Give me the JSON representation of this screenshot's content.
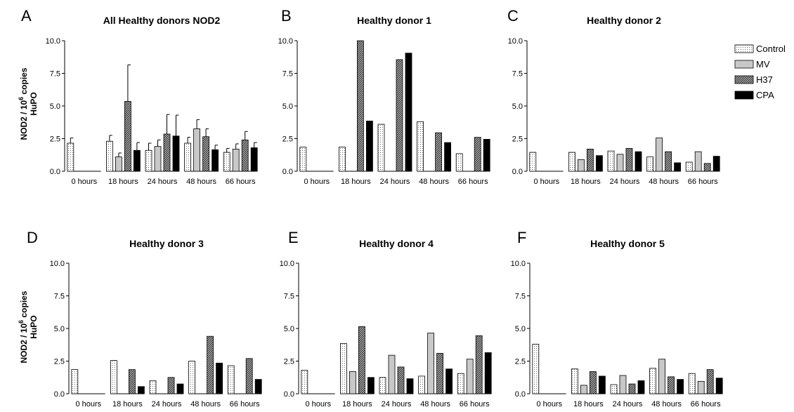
{
  "figure": {
    "ylabel_main": "NOD2 / 10",
    "ylabel_sup": "6",
    "ylabel_tail": " copies",
    "ylabel_line2": "HuPO"
  },
  "legend": {
    "items": [
      {
        "label": "Control",
        "pattern": "dots"
      },
      {
        "label": "MV",
        "pattern": "gray"
      },
      {
        "label": "H37",
        "pattern": "hatch"
      },
      {
        "label": "CPA",
        "pattern": "black"
      }
    ]
  },
  "chart_data": [
    {
      "type": "bar",
      "letter": "A",
      "title": "All Healthy donors NOD2",
      "categories": [
        "0 hours",
        "18 hours",
        "24 hours",
        "48 hours",
        "66 hours"
      ],
      "ylim": [
        0,
        10
      ],
      "yticks": [
        "0.0",
        "2.5",
        "5.0",
        "7.5",
        "10.0"
      ],
      "error_bars": true,
      "series": [
        {
          "name": "Control",
          "values": [
            2.15,
            2.3,
            1.6,
            2.15,
            1.45
          ],
          "errors": [
            0.4,
            0.45,
            0.55,
            0.45,
            0.3
          ]
        },
        {
          "name": "MV",
          "values": [
            0,
            1.1,
            1.9,
            3.25,
            1.7
          ],
          "errors": [
            0,
            0.3,
            0.5,
            0.7,
            0.4
          ]
        },
        {
          "name": "H37",
          "values": [
            0,
            5.35,
            2.85,
            2.65,
            2.4
          ],
          "errors": [
            0,
            2.8,
            1.5,
            0.6,
            0.65
          ]
        },
        {
          "name": "CPA",
          "values": [
            0,
            1.6,
            2.7,
            1.65,
            1.8
          ],
          "errors": [
            0,
            0.6,
            1.6,
            0.35,
            0.4
          ]
        }
      ]
    },
    {
      "type": "bar",
      "letter": "B",
      "title": "Healthy donor 1",
      "categories": [
        "0 hours",
        "18 hours",
        "24 hours",
        "48 hours",
        "66 hours"
      ],
      "ylim": [
        0,
        10
      ],
      "yticks": [
        "0.0",
        "2.5",
        "5.0",
        "7.5",
        "10.0"
      ],
      "series": [
        {
          "name": "Control",
          "values": [
            1.85,
            1.85,
            3.6,
            3.8,
            1.35
          ]
        },
        {
          "name": "MV",
          "values": [
            0,
            0,
            0,
            0,
            0
          ]
        },
        {
          "name": "H37",
          "values": [
            0,
            10.0,
            8.55,
            2.95,
            2.6
          ]
        },
        {
          "name": "CPA",
          "values": [
            0,
            3.85,
            9.05,
            2.2,
            2.45
          ]
        }
      ]
    },
    {
      "type": "bar",
      "letter": "C",
      "title": "Healthy donor 2",
      "categories": [
        "0 hours",
        "18 hours",
        "24 hours",
        "48 hours",
        "66 hours"
      ],
      "ylim": [
        0,
        10
      ],
      "yticks": [
        "0.0",
        "2.5",
        "5.0",
        "7.5",
        "10.0"
      ],
      "series": [
        {
          "name": "Control",
          "values": [
            1.45,
            1.45,
            1.55,
            1.1,
            0.7
          ]
        },
        {
          "name": "MV",
          "values": [
            0,
            0.9,
            1.3,
            2.55,
            1.5
          ]
        },
        {
          "name": "H37",
          "values": [
            0,
            1.7,
            1.75,
            1.5,
            0.6
          ]
        },
        {
          "name": "CPA",
          "values": [
            0,
            1.2,
            1.5,
            0.65,
            1.15
          ]
        }
      ]
    },
    {
      "type": "bar",
      "letter": "D",
      "title": "Healthy donor 3",
      "categories": [
        "0 hours",
        "18 hours",
        "24 hours",
        "48 hours",
        "66 hours"
      ],
      "ylim": [
        0,
        10
      ],
      "yticks": [
        "0.0",
        "2.5",
        "5.0",
        "7.5",
        "10.0"
      ],
      "series": [
        {
          "name": "Control",
          "values": [
            1.85,
            2.55,
            1.0,
            2.5,
            2.15
          ]
        },
        {
          "name": "MV",
          "values": [
            0,
            0,
            0,
            0,
            0
          ]
        },
        {
          "name": "H37",
          "values": [
            0,
            1.85,
            1.25,
            4.4,
            2.7
          ]
        },
        {
          "name": "CPA",
          "values": [
            0,
            0.55,
            0.75,
            2.35,
            1.1
          ]
        }
      ]
    },
    {
      "type": "bar",
      "letter": "E",
      "title": "Healthy donor 4",
      "categories": [
        "0 hours",
        "18 hours",
        "24 hours",
        "48 hours",
        "66 hours"
      ],
      "ylim": [
        0,
        10
      ],
      "yticks": [
        "0.0",
        "2.5",
        "5.0",
        "7.5",
        "10.0"
      ],
      "series": [
        {
          "name": "Control",
          "values": [
            1.8,
            3.85,
            1.25,
            1.35,
            1.55
          ]
        },
        {
          "name": "MV",
          "values": [
            0,
            1.7,
            2.95,
            4.65,
            2.65
          ]
        },
        {
          "name": "H37",
          "values": [
            0,
            5.15,
            2.05,
            3.1,
            4.45
          ]
        },
        {
          "name": "CPA",
          "values": [
            0,
            1.25,
            1.15,
            1.9,
            3.15
          ]
        }
      ]
    },
    {
      "type": "bar",
      "letter": "F",
      "title": "Healthy donor 5",
      "categories": [
        "0 hours",
        "18 hours",
        "24 hours",
        "48 hours",
        "66 hours"
      ],
      "ylim": [
        0,
        10
      ],
      "yticks": [
        "0.0",
        "2.5",
        "5.0",
        "7.5",
        "10.0"
      ],
      "series": [
        {
          "name": "Control",
          "values": [
            3.8,
            1.9,
            0.7,
            1.95,
            1.55
          ]
        },
        {
          "name": "MV",
          "values": [
            0,
            0.65,
            1.4,
            2.65,
            0.95
          ]
        },
        {
          "name": "H37",
          "values": [
            0,
            1.7,
            0.75,
            1.3,
            1.85
          ]
        },
        {
          "name": "CPA",
          "values": [
            0,
            1.35,
            1.0,
            1.1,
            1.2
          ]
        }
      ]
    }
  ]
}
